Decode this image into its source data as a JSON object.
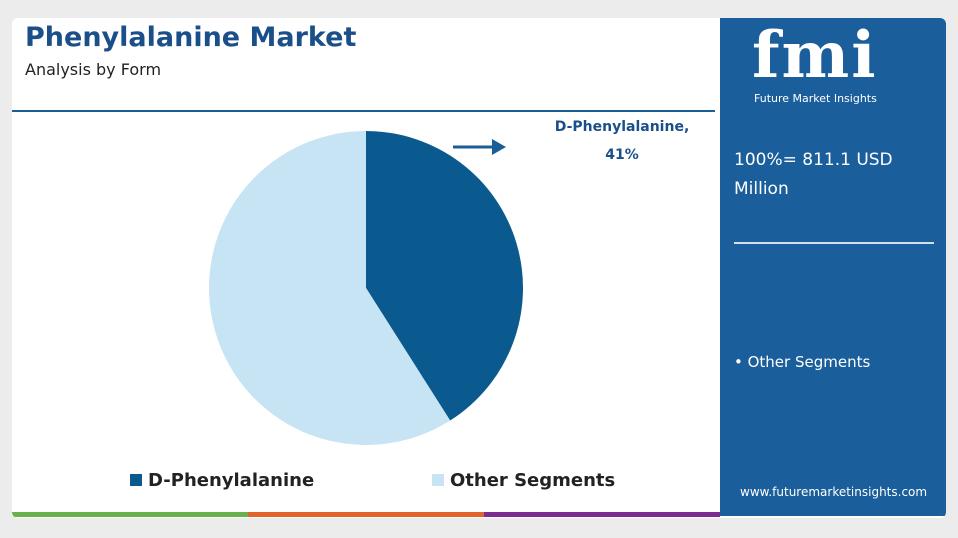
{
  "chart_data": {
    "type": "pie",
    "title": "Phenylalanine Market",
    "subtitle": "Analysis by Form",
    "categories": [
      "D-Phenylalanine",
      "Other Segments"
    ],
    "values": [
      41,
      59
    ],
    "value_labels": [
      "41%",
      null
    ],
    "annotation": "D-Phenylalanine,",
    "colors": [
      "#0b5a8f",
      "#c7e4f4"
    ],
    "legend": "bottom"
  },
  "panel": {
    "logo": "fmi",
    "brand": "Future Market Insights",
    "total": "100%= 811.1 USD Million",
    "segment": "• Other Segments",
    "website": "www.futuremarketinsights.com"
  }
}
